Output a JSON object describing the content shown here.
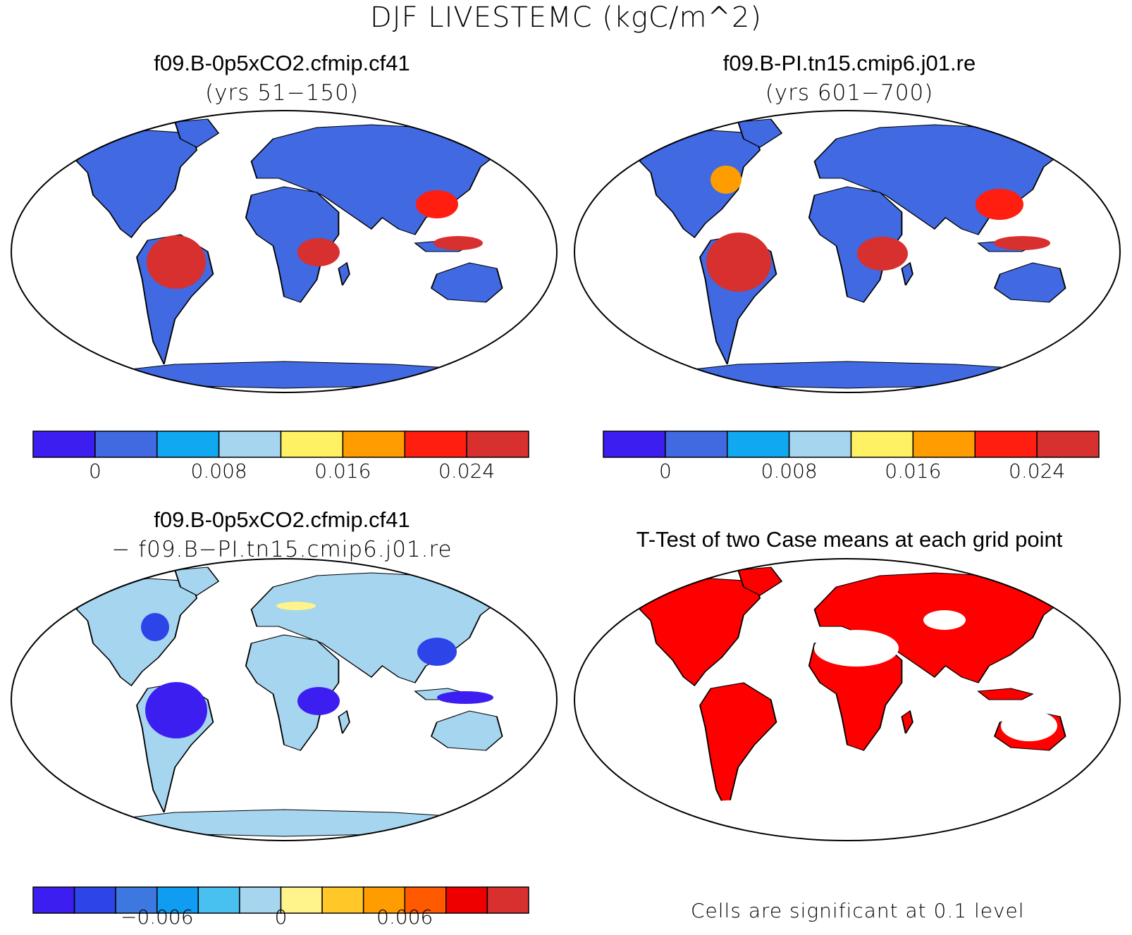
{
  "figure": {
    "title": "DJF LIVESTEMC (kgC/m^2)"
  },
  "panels": [
    {
      "id": "case1",
      "title": "f09.B-0p5xCO2.cfmip.cf41",
      "subtitle": "(yrs 51−150)",
      "fill": "#4169e1"
    },
    {
      "id": "case2",
      "title": "f09.B-PI.tn15.cmip6.j01.re",
      "subtitle": "(yrs 601−700)",
      "fill": "#4169e1"
    },
    {
      "id": "diff",
      "title": "f09.B-0p5xCO2.cfmip.cf41",
      "subtitle": "− f09.B−PI.tn15.cmip6.j01.re",
      "fill": "#a6d5f0"
    },
    {
      "id": "ttest",
      "title": "T-Test of two Case means at each grid point",
      "subtitle": "",
      "fill": "#ff0000"
    }
  ],
  "colorbars": {
    "abs": {
      "colors": [
        "#3c1ef0",
        "#4169e1",
        "#10a8f0",
        "#a6d5f0",
        "#fff164",
        "#ff9c00",
        "#ff1e10",
        "#d7302f"
      ],
      "ticks": [
        "0",
        "0.008",
        "0.016",
        "0.024"
      ]
    },
    "diff": {
      "colors": [
        "#3c1ef0",
        "#2c44e8",
        "#3c78e0",
        "#109cf0",
        "#48c0f0",
        "#a6d5f0",
        "#fff38c",
        "#ffc828",
        "#ff9c00",
        "#ff5a00",
        "#ef0000",
        "#d7302f"
      ],
      "ticks": [
        "−0.006",
        "0",
        "0.006"
      ]
    }
  },
  "ttest_note": "Cells are significant at 0.1 level"
}
